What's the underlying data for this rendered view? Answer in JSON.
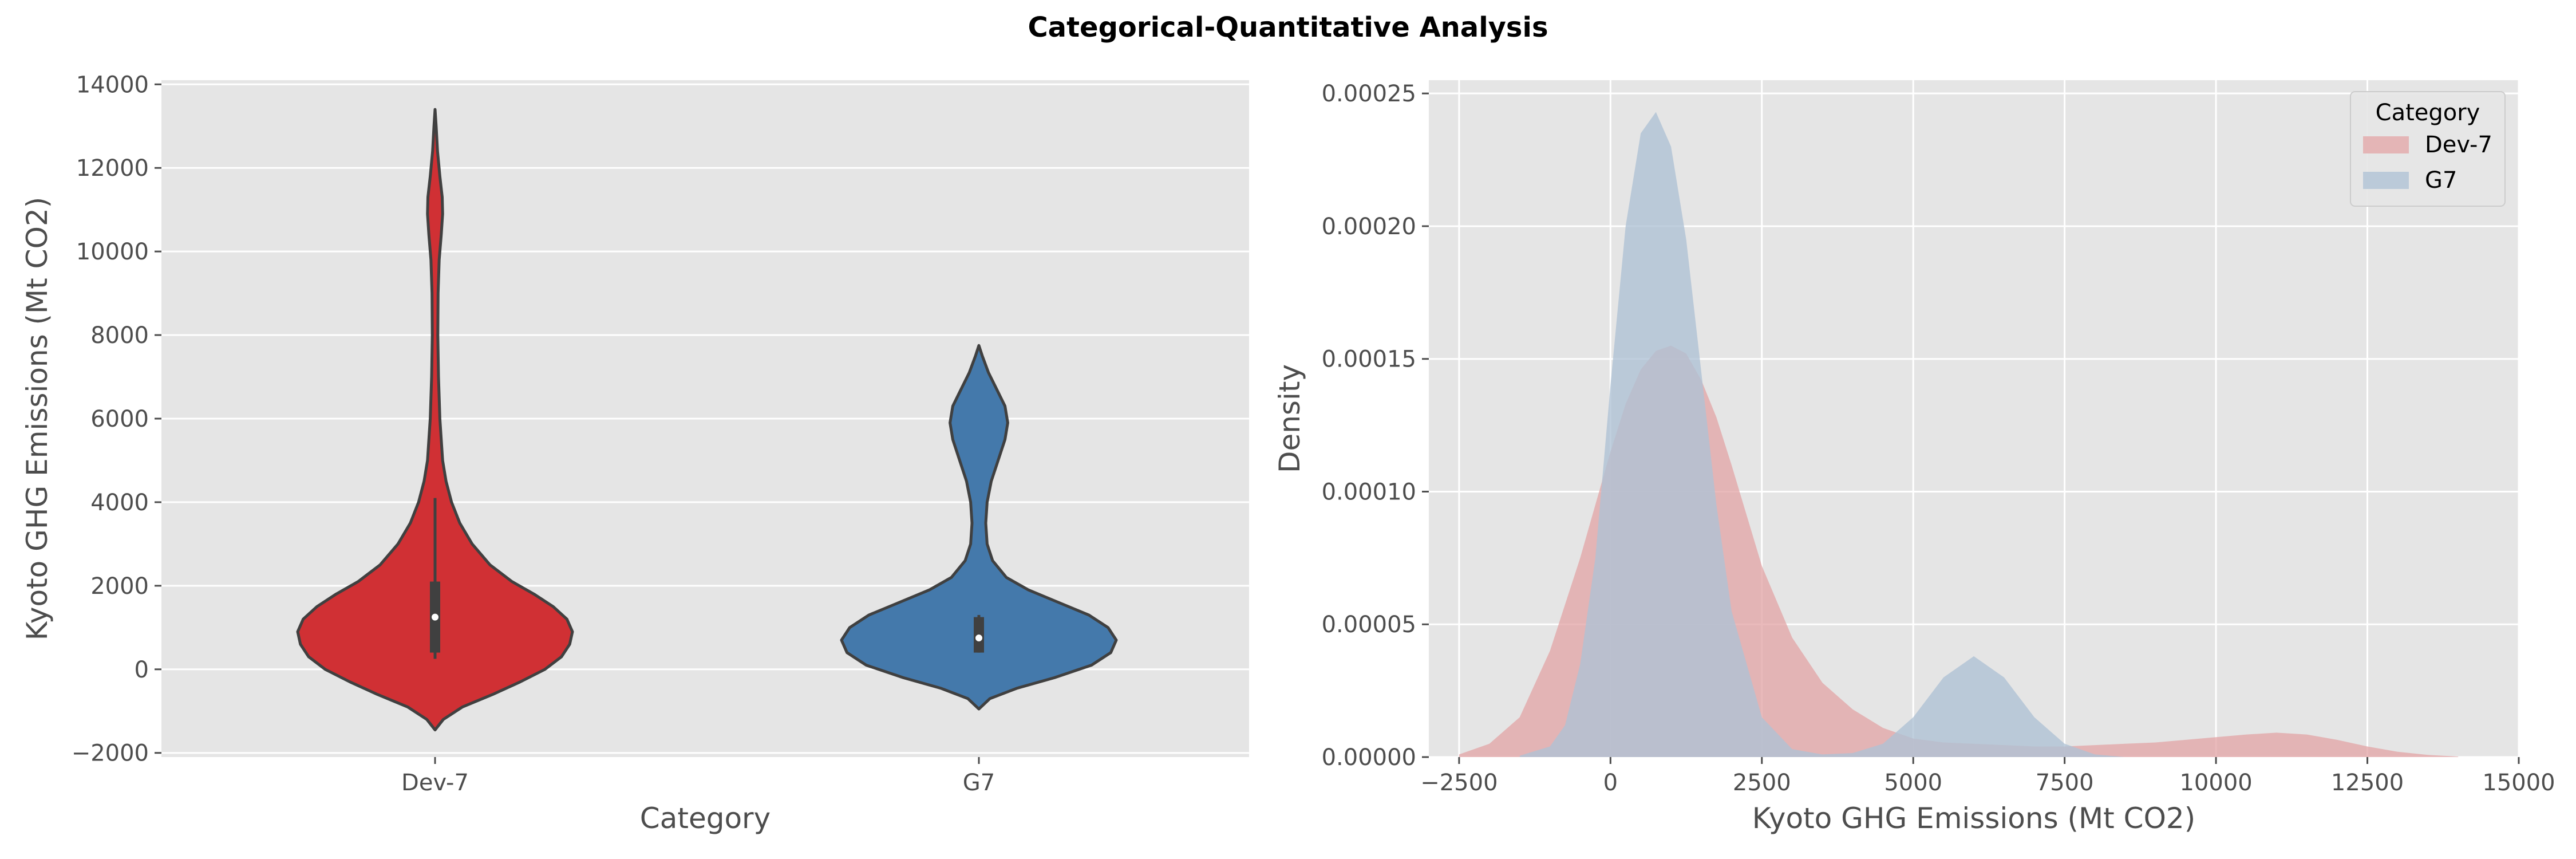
{
  "title": "Categorical-Quantitative Analysis",
  "colors": {
    "background": "#e5e5e5",
    "grid": "#ffffff",
    "dev7": "#d62728",
    "dev7_violin": "#d03034",
    "g7_violin": "#4479ab",
    "dev7_kde": "#e3a7a8",
    "g7_kde": "#aec2d5",
    "outline": "#404040"
  },
  "chart_data": [
    {
      "type": "violin",
      "xlabel": "Category",
      "ylabel": "Kyoto GHG Emissions (Mt CO2)",
      "categories": [
        "Dev-7",
        "G7"
      ],
      "ylim": [
        -2100,
        14100
      ],
      "yticks": [
        -2000,
        0,
        2000,
        4000,
        6000,
        8000,
        10000,
        12000,
        14000
      ],
      "ytick_labels": [
        "−2000",
        "0",
        "2000",
        "4000",
        "6000",
        "8000",
        "10000",
        "12000",
        "14000"
      ],
      "grid": true,
      "series": [
        {
          "category": "Dev-7",
          "color": "#d03034",
          "range": [
            -1450,
            13400
          ],
          "median": 1250,
          "q1": 400,
          "q3": 2100,
          "whisker_low": 250,
          "whisker_high": 4100,
          "profile": [
            [
              -1450,
              0.0
            ],
            [
              -1200,
              0.06
            ],
            [
              -900,
              0.2
            ],
            [
              -600,
              0.42
            ],
            [
              -300,
              0.62
            ],
            [
              0,
              0.8
            ],
            [
              300,
              0.92
            ],
            [
              600,
              0.98
            ],
            [
              900,
              1.0
            ],
            [
              1200,
              0.96
            ],
            [
              1500,
              0.86
            ],
            [
              1800,
              0.72
            ],
            [
              2100,
              0.56
            ],
            [
              2500,
              0.4
            ],
            [
              3000,
              0.27
            ],
            [
              3500,
              0.18
            ],
            [
              4000,
              0.12
            ],
            [
              4500,
              0.08
            ],
            [
              5000,
              0.055
            ],
            [
              6000,
              0.035
            ],
            [
              7000,
              0.025
            ],
            [
              8000,
              0.02
            ],
            [
              9000,
              0.022
            ],
            [
              9800,
              0.03
            ],
            [
              10400,
              0.045
            ],
            [
              10900,
              0.055
            ],
            [
              11300,
              0.052
            ],
            [
              11800,
              0.035
            ],
            [
              12400,
              0.018
            ],
            [
              13000,
              0.008
            ],
            [
              13400,
              0.0
            ]
          ]
        },
        {
          "category": "G7",
          "color": "#4479ab",
          "range": [
            -950,
            7750
          ],
          "median": 750,
          "q1": 400,
          "q3": 1250,
          "whisker_low": 400,
          "whisker_high": 1300,
          "profile": [
            [
              -950,
              0.0
            ],
            [
              -700,
              0.08
            ],
            [
              -450,
              0.28
            ],
            [
              -200,
              0.55
            ],
            [
              100,
              0.82
            ],
            [
              400,
              0.96
            ],
            [
              700,
              1.0
            ],
            [
              1000,
              0.94
            ],
            [
              1300,
              0.8
            ],
            [
              1600,
              0.58
            ],
            [
              1900,
              0.36
            ],
            [
              2200,
              0.2
            ],
            [
              2600,
              0.1
            ],
            [
              3000,
              0.06
            ],
            [
              3500,
              0.05
            ],
            [
              4000,
              0.06
            ],
            [
              4500,
              0.09
            ],
            [
              5000,
              0.14
            ],
            [
              5500,
              0.19
            ],
            [
              5900,
              0.21
            ],
            [
              6300,
              0.19
            ],
            [
              6700,
              0.13
            ],
            [
              7100,
              0.07
            ],
            [
              7500,
              0.025
            ],
            [
              7750,
              0.0
            ]
          ]
        }
      ]
    },
    {
      "type": "area",
      "xlabel": "Kyoto GHG Emissions (Mt CO2)",
      "ylabel": "Density",
      "xlim": [
        -3000,
        15000
      ],
      "ylim": [
        0,
        0.000255
      ],
      "xticks": [
        -2500,
        0,
        2500,
        5000,
        7500,
        10000,
        12500,
        15000
      ],
      "xtick_labels": [
        "−2500",
        "0",
        "2500",
        "5000",
        "7500",
        "10000",
        "12500",
        "15000"
      ],
      "yticks": [
        0,
        5e-05,
        0.0001,
        0.00015,
        0.0002,
        0.00025
      ],
      "ytick_labels": [
        "0.00000",
        "0.00005",
        "0.00010",
        "0.00015",
        "0.00020",
        "0.00025"
      ],
      "grid": true,
      "legend": {
        "title": "Category",
        "placement": "top-right"
      },
      "series": [
        {
          "name": "Dev-7",
          "color": "#e3a7a8",
          "x": [
            -2500,
            -2000,
            -1500,
            -1000,
            -500,
            0,
            250,
            500,
            750,
            1000,
            1250,
            1500,
            1750,
            2000,
            2500,
            3000,
            3500,
            4000,
            4500,
            5000,
            5500,
            6000,
            6500,
            7000,
            7500,
            8000,
            8500,
            9000,
            9500,
            10000,
            10500,
            11000,
            11500,
            12000,
            12500,
            13000,
            13500,
            14000
          ],
          "y": [
            1e-06,
            5e-06,
            1.5e-05,
            4e-05,
            7.5e-05,
            0.000115,
            0.000133,
            0.000146,
            0.000153,
            0.000155,
            0.000152,
            0.000142,
            0.000128,
            0.00011,
            7.2e-05,
            4.5e-05,
            2.8e-05,
            1.8e-05,
            1.1e-05,
            7e-06,
            5.5e-06,
            5e-06,
            4.5e-06,
            4e-06,
            4e-06,
            4.5e-06,
            5e-06,
            5.5e-06,
            6.5e-06,
            7.5e-06,
            8.5e-06,
            9.2e-06,
            8.5e-06,
            6.5e-06,
            4e-06,
            2e-06,
            8e-07,
            2e-07
          ]
        },
        {
          "name": "G7",
          "color": "#aec2d5",
          "x": [
            -1500,
            -1000,
            -750,
            -500,
            -250,
            0,
            250,
            500,
            750,
            1000,
            1250,
            1500,
            1750,
            2000,
            2500,
            3000,
            3500,
            4000,
            4500,
            5000,
            5500,
            6000,
            6500,
            7000,
            7500,
            8000,
            8500
          ],
          "y": [
            5e-07,
            4e-06,
            1.2e-05,
            3.5e-05,
            7.5e-05,
            0.00014,
            0.0002,
            0.000235,
            0.000243,
            0.00023,
            0.000195,
            0.000145,
            9.5e-05,
            5.5e-05,
            1.5e-05,
            3e-06,
            1e-06,
            1.5e-06,
            5e-06,
            1.5e-05,
            3e-05,
            3.8e-05,
            3e-05,
            1.5e-05,
            5e-06,
            1e-06,
            0.0
          ]
        }
      ]
    }
  ]
}
